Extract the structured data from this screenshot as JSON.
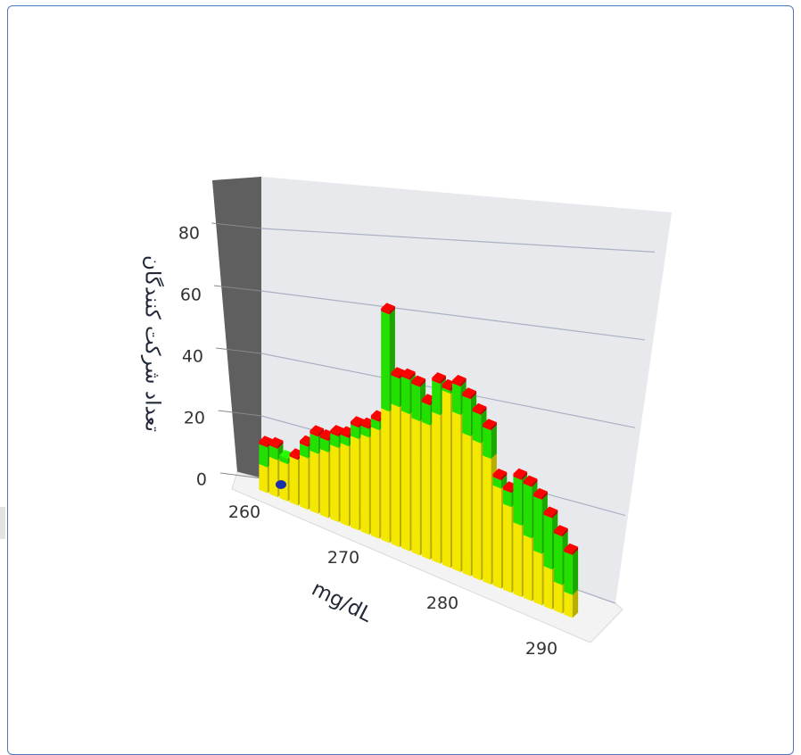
{
  "chart_data": {
    "type": "bar",
    "style": "3d-stacked",
    "xlabel": "mg/dL",
    "ylabel": "تعداد شرکت کنندگان",
    "x_ticks": [
      260,
      270,
      280,
      290
    ],
    "y_ticks": [
      0,
      20,
      40,
      60,
      80
    ],
    "ylim": [
      0,
      95
    ],
    "x": [
      262,
      263,
      264,
      265,
      266,
      267,
      268,
      269,
      270,
      271,
      272,
      273,
      274,
      275,
      276,
      277,
      278,
      279,
      280,
      281,
      282,
      283,
      284,
      285,
      286,
      287,
      288,
      289,
      290,
      291,
      292
    ],
    "series": [
      {
        "color": "#f4e800",
        "values": [
          9,
          13,
          13,
          16,
          18,
          21,
          23,
          26,
          28,
          32,
          34,
          38,
          46,
          49,
          48,
          47,
          47,
          52,
          61,
          55,
          49,
          48,
          44,
          35,
          30,
          25,
          22,
          18,
          14,
          10,
          8
        ]
      },
      {
        "color": "#22e000",
        "values": [
          7,
          4,
          2,
          0,
          4,
          6,
          4,
          4,
          3,
          4,
          3,
          3,
          34,
          10,
          12,
          12,
          7,
          11,
          1,
          10,
          13,
          10,
          10,
          3,
          5,
          16,
          18,
          19,
          18,
          17,
          14
        ]
      },
      {
        "color": "#f40000",
        "values": [
          1,
          1,
          0,
          1,
          1,
          1,
          1,
          1,
          1,
          1,
          1,
          1,
          1,
          1,
          1,
          1,
          1,
          1,
          1,
          1,
          1,
          1,
          1,
          1,
          1,
          1,
          1,
          1,
          1,
          1,
          1
        ]
      }
    ],
    "colors": {
      "floor": "#f3f3f3",
      "back_wall": "#e8e9ed",
      "side_wall": "#5f5f5f",
      "grid": "#a9b1c4",
      "marker": "#1b2fa8"
    }
  }
}
